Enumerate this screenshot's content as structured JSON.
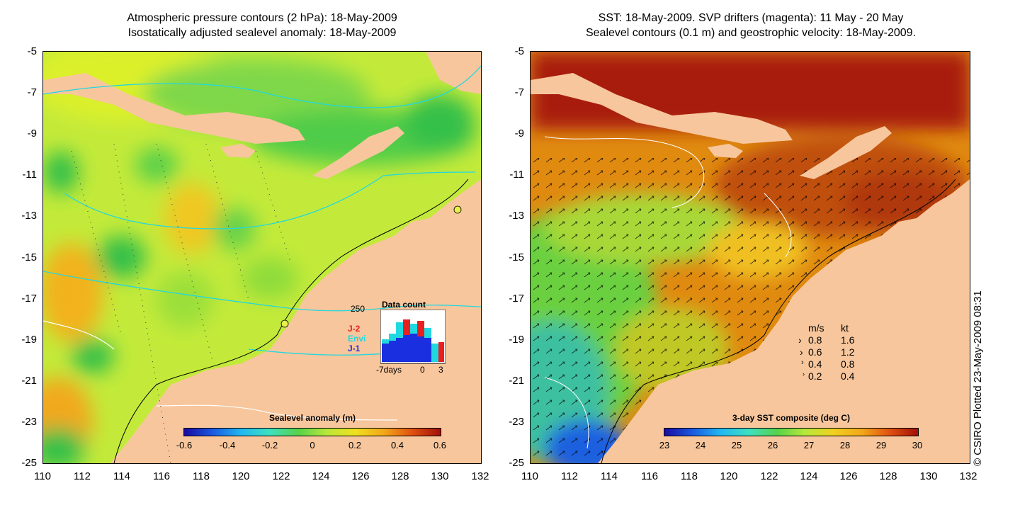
{
  "left_panel": {
    "title_line1": "Atmospheric pressure contours (2 hPa): 18-May-2009",
    "title_line2": "Isostatically adjusted sealevel anomaly: 18-May-2009",
    "colorbar": {
      "title": "Sealevel anomaly (m)",
      "ticks": [
        "-0.6",
        "-0.4",
        "-0.2",
        "0",
        "0.2",
        "0.4",
        "0.6"
      ]
    },
    "inset": {
      "title": "Data count",
      "y_max_label": "250",
      "x_labels": [
        "-7days",
        "0",
        "3"
      ],
      "series": [
        {
          "name": "J-2",
          "color": "#e8201f"
        },
        {
          "name": "Envi",
          "color": "#22d8e0"
        },
        {
          "name": "J-1",
          "color": "#1a2fe0"
        }
      ]
    }
  },
  "right_panel": {
    "title_line1": "SST: 18-May-2009. SVP drifters (magenta): 11 May - 20 May",
    "title_line2": "Sealevel contours (0.1 m) and geostrophic velocity: 18-May-2009.",
    "colorbar": {
      "title": "3-day SST composite (deg C)",
      "ticks": [
        "23",
        "24",
        "25",
        "26",
        "27",
        "28",
        "29",
        "30"
      ]
    },
    "velocity_legend": {
      "header_ms": "m/s",
      "header_kt": "kt",
      "rows": [
        {
          "ms": "0.8",
          "kt": "1.6"
        },
        {
          "ms": "0.6",
          "kt": "1.2"
        },
        {
          "ms": "0.4",
          "kt": "0.8"
        },
        {
          "ms": "0.2",
          "kt": "0.4"
        }
      ]
    }
  },
  "axes": {
    "y_ticks": [
      "-5",
      "-7",
      "-9",
      "-11",
      "-13",
      "-15",
      "-17",
      "-19",
      "-21",
      "-23",
      "-25"
    ],
    "x_ticks": [
      "110",
      "112",
      "114",
      "116",
      "118",
      "120",
      "122",
      "124",
      "126",
      "128",
      "130",
      "132"
    ]
  },
  "credit": "© CSIRO Plotted 23-May-2009 08:31",
  "colors": {
    "land": "#f7c69c",
    "contour_pressure": "#22d8e0",
    "contour_sealevel": "#ffffff"
  }
}
